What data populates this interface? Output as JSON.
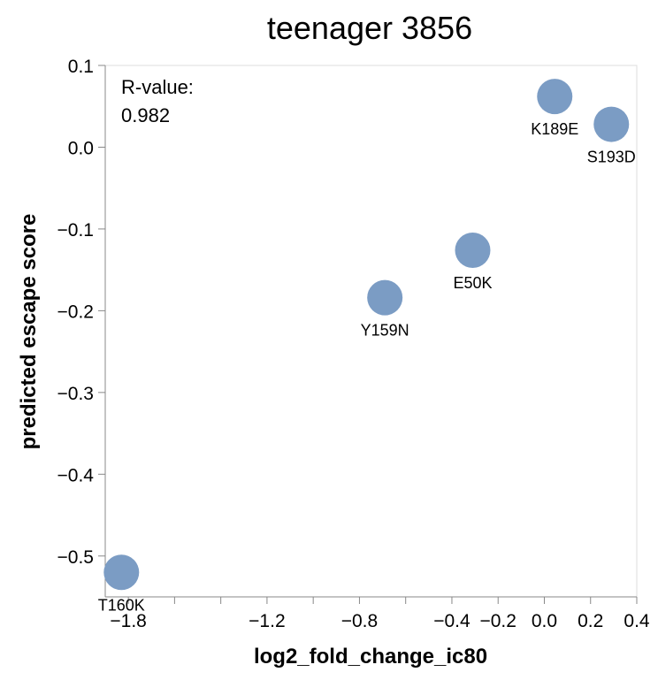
{
  "chart_data": {
    "type": "scatter",
    "title": "teenager 3856",
    "xlabel": "log2_fold_change_ic80",
    "ylabel": "predicted escape score",
    "xlim": [
      -1.9,
      0.4
    ],
    "ylim": [
      -0.55,
      0.1
    ],
    "x_ticks": [
      -1.8,
      -1.6,
      -1.4,
      -1.2,
      -1.0,
      -0.8,
      -0.6,
      -0.4,
      -0.2,
      0.0,
      0.2,
      0.4
    ],
    "x_tick_labels": [
      "−1.8",
      "",
      "",
      "−1.2",
      "",
      "−0.8",
      "",
      "−0.4",
      "−0.2",
      "0.0",
      "0.2",
      "0.4"
    ],
    "y_ticks": [
      0.1,
      0.0,
      -0.1,
      -0.2,
      -0.3,
      -0.4,
      -0.5
    ],
    "y_tick_labels": [
      "0.1",
      "0.0",
      "−0.1",
      "−0.2",
      "−0.3",
      "−0.4",
      "−0.5"
    ],
    "annotation": {
      "label": "R-value:",
      "value": "0.982"
    },
    "point_color": "#7b9cc4",
    "points": [
      {
        "label": "T160K",
        "x": -1.83,
        "y": -0.52
      },
      {
        "label": "Y159N",
        "x": -0.69,
        "y": -0.184
      },
      {
        "label": "E50K",
        "x": -0.31,
        "y": -0.126
      },
      {
        "label": "K189E",
        "x": 0.045,
        "y": 0.062
      },
      {
        "label": "S193D",
        "x": 0.29,
        "y": 0.028
      }
    ]
  }
}
